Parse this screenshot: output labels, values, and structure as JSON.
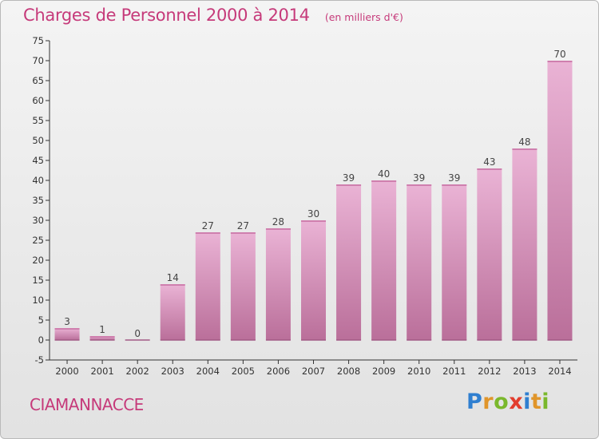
{
  "title": "Charges de Personnel 2000 à 2014",
  "subtitle": "(en milliers d'€)",
  "commune": "CIAMANNACCE",
  "logo_text": "Proxiti",
  "colors": {
    "title": "#c63a7a",
    "bar_light": "#eab3d5",
    "bar_dark": "#ba6f9a",
    "bar_top": "#cf7fae",
    "axis": "#333333",
    "background": "#ececec"
  },
  "chart_data": {
    "type": "bar",
    "categories": [
      "2000",
      "2001",
      "2002",
      "2003",
      "2004",
      "2005",
      "2006",
      "2007",
      "2008",
      "2009",
      "2010",
      "2011",
      "2012",
      "2013",
      "2014"
    ],
    "values": [
      3,
      1,
      0,
      14,
      27,
      27,
      28,
      30,
      39,
      40,
      39,
      39,
      43,
      48,
      70
    ],
    "ylim": [
      -5,
      75
    ],
    "yticks": [
      -5,
      0,
      5,
      10,
      15,
      20,
      25,
      30,
      35,
      40,
      45,
      50,
      55,
      60,
      65,
      70,
      75
    ],
    "xlabel": "",
    "ylabel": "",
    "grid": false,
    "data_labels": true
  }
}
